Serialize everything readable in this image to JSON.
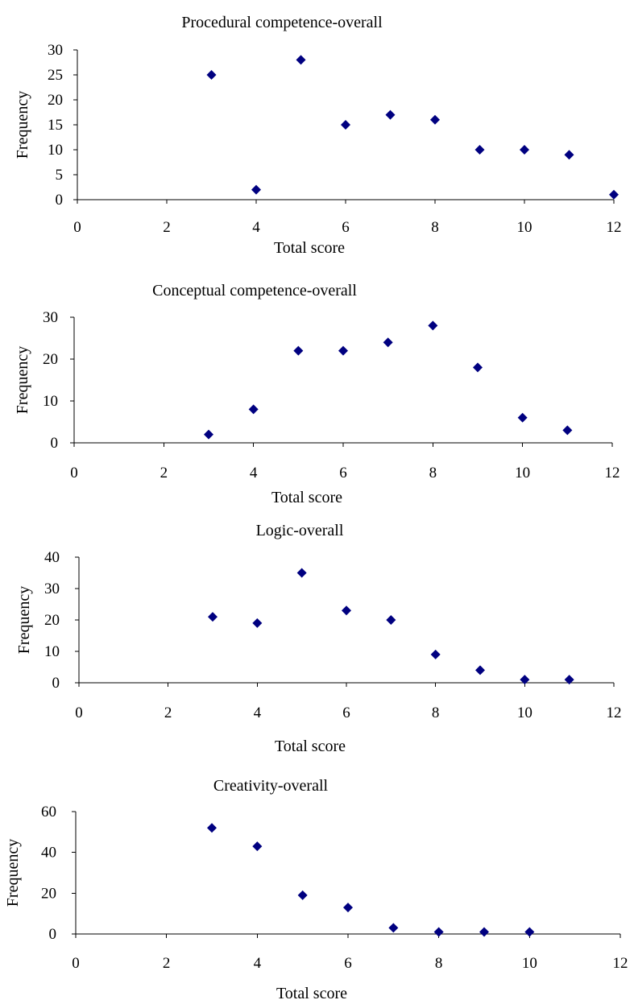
{
  "chart_data": [
    {
      "type": "scatter",
      "title": "Procedural competence-overall",
      "xlabel": "Total score",
      "ylabel": "Frequency",
      "xlim": [
        0,
        12
      ],
      "ylim": [
        0,
        30
      ],
      "xticks": [
        0,
        2,
        4,
        6,
        8,
        10,
        12
      ],
      "yticks": [
        0,
        5,
        10,
        15,
        20,
        25,
        30
      ],
      "grid": false,
      "marker": "diamond",
      "color": "#000080",
      "points": [
        {
          "x": 3,
          "y": 25
        },
        {
          "x": 4,
          "y": 2
        },
        {
          "x": 5,
          "y": 28
        },
        {
          "x": 6,
          "y": 15
        },
        {
          "x": 7,
          "y": 17
        },
        {
          "x": 8,
          "y": 16
        },
        {
          "x": 9,
          "y": 10
        },
        {
          "x": 10,
          "y": 10
        },
        {
          "x": 11,
          "y": 9
        },
        {
          "x": 12,
          "y": 1
        }
      ]
    },
    {
      "type": "scatter",
      "title": "Conceptual competence-overall",
      "xlabel": "Total score",
      "ylabel": "Frequency",
      "xlim": [
        0,
        12
      ],
      "ylim": [
        0,
        30
      ],
      "xticks": [
        0,
        2,
        4,
        6,
        8,
        10,
        12
      ],
      "yticks": [
        0,
        10,
        20,
        30
      ],
      "grid": false,
      "marker": "diamond",
      "color": "#000080",
      "points": [
        {
          "x": 3,
          "y": 2
        },
        {
          "x": 4,
          "y": 8
        },
        {
          "x": 5,
          "y": 22
        },
        {
          "x": 6,
          "y": 22
        },
        {
          "x": 7,
          "y": 24
        },
        {
          "x": 8,
          "y": 28
        },
        {
          "x": 9,
          "y": 18
        },
        {
          "x": 10,
          "y": 6
        },
        {
          "x": 11,
          "y": 3
        }
      ]
    },
    {
      "type": "scatter",
      "title": "Logic-overall",
      "xlabel": "Total score",
      "ylabel": "Frequency",
      "xlim": [
        0,
        12
      ],
      "ylim": [
        0,
        40
      ],
      "xticks": [
        0,
        2,
        4,
        6,
        8,
        10,
        12
      ],
      "yticks": [
        0,
        10,
        20,
        30,
        40
      ],
      "grid": false,
      "marker": "diamond",
      "color": "#000080",
      "points": [
        {
          "x": 3,
          "y": 21
        },
        {
          "x": 4,
          "y": 19
        },
        {
          "x": 5,
          "y": 35
        },
        {
          "x": 6,
          "y": 23
        },
        {
          "x": 7,
          "y": 20
        },
        {
          "x": 8,
          "y": 9
        },
        {
          "x": 9,
          "y": 4
        },
        {
          "x": 10,
          "y": 1
        },
        {
          "x": 11,
          "y": 1
        }
      ]
    },
    {
      "type": "scatter",
      "title": "Creativity-overall",
      "xlabel": "Total score",
      "ylabel": "Frequency",
      "xlim": [
        0,
        12
      ],
      "ylim": [
        0,
        60
      ],
      "xticks": [
        0,
        2,
        4,
        6,
        8,
        10,
        12
      ],
      "yticks": [
        0,
        20,
        40,
        60
      ],
      "grid": false,
      "marker": "diamond",
      "color": "#000080",
      "points": [
        {
          "x": 3,
          "y": 52
        },
        {
          "x": 4,
          "y": 43
        },
        {
          "x": 5,
          "y": 19
        },
        {
          "x": 6,
          "y": 13
        },
        {
          "x": 7,
          "y": 3
        },
        {
          "x": 8,
          "y": 1
        },
        {
          "x": 9,
          "y": 1
        },
        {
          "x": 10,
          "y": 1
        }
      ]
    }
  ]
}
